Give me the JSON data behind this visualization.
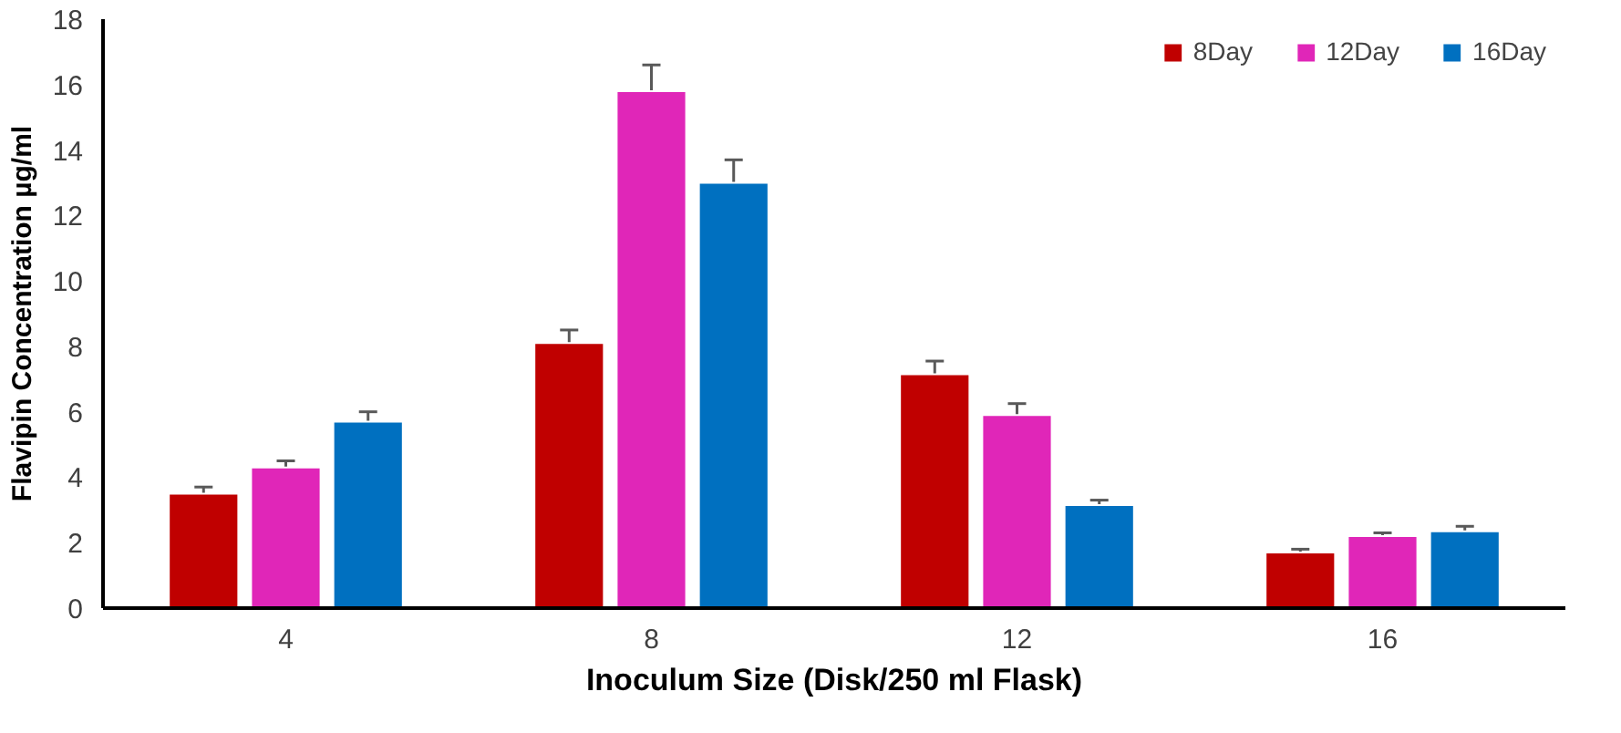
{
  "chart_data": {
    "type": "bar",
    "xlabel": "Inoculum Size (Disk/250 ml Flask)",
    "ylabel": "Flavipin Concentration µg/ml",
    "categories": [
      "4",
      "8",
      "12",
      "16"
    ],
    "series": [
      {
        "name": "8Day",
        "color": "#c00000",
        "values": [
          3.5,
          8.1,
          7.15,
          1.7
        ],
        "errors": [
          0.2,
          0.4,
          0.4,
          0.1
        ]
      },
      {
        "name": "12Day",
        "color": "#e026b8",
        "values": [
          4.3,
          15.8,
          5.9,
          2.2
        ],
        "errors": [
          0.2,
          0.8,
          0.35,
          0.1
        ]
      },
      {
        "name": "16Day",
        "color": "#0070c0",
        "values": [
          5.7,
          13.0,
          3.15,
          2.35
        ],
        "errors": [
          0.3,
          0.7,
          0.15,
          0.15
        ]
      }
    ],
    "ylim": [
      0,
      18
    ],
    "yticks": [
      0,
      2,
      4,
      6,
      8,
      10,
      12,
      14,
      16,
      18
    ],
    "grid": false,
    "legend": "top right"
  }
}
